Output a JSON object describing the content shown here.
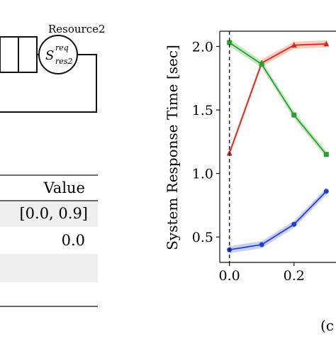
{
  "diagram": {
    "resource_label": "Resource2",
    "service_symbol": "S",
    "service_sup": "req",
    "service_sub": "res2"
  },
  "table": {
    "header": "Value",
    "rows": [
      "[0.0, 0.9]",
      "0.0",
      "",
      ""
    ]
  },
  "chart_data": {
    "type": "line",
    "ylabel": "System Response Time [sec]",
    "xlabel": "",
    "subplot_label_fragment": "(c",
    "xlim": [
      -0.03,
      0.33
    ],
    "ylim": [
      0.3,
      2.12
    ],
    "xticks": [
      0.0,
      0.2
    ],
    "xtick_labels": [
      "0.0",
      "0.2"
    ],
    "yticks": [
      0.5,
      1.0,
      1.5,
      2.0
    ],
    "ytick_labels": [
      "0.5",
      "1.0",
      "1.5",
      "2.0"
    ],
    "vline_x": 0.0,
    "grid": false,
    "series": [
      {
        "color": "#d62728",
        "band": "#f4a582",
        "marker": "triangle",
        "x": [
          0.0,
          0.1,
          0.2,
          0.3
        ],
        "y": [
          1.16,
          1.87,
          2.01,
          2.02
        ]
      },
      {
        "color": "#2ca02c",
        "band": "#98d598",
        "marker": "square",
        "x": [
          0.0,
          0.1,
          0.2,
          0.3
        ],
        "y": [
          2.03,
          1.86,
          1.46,
          1.15
        ]
      },
      {
        "color": "#1f3fd6",
        "band": "#9fa8f0",
        "marker": "circle",
        "x": [
          0.0,
          0.1,
          0.2,
          0.3
        ],
        "y": [
          0.4,
          0.44,
          0.6,
          0.86
        ]
      }
    ]
  }
}
